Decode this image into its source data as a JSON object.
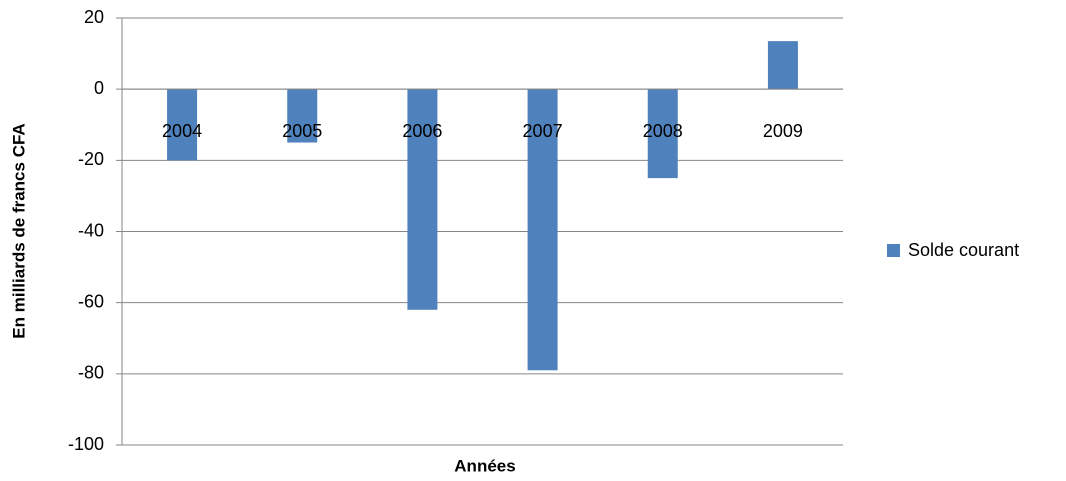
{
  "chart_data": {
    "type": "bar",
    "x_label": "Années",
    "y_label": "En milliards de francs CFA",
    "categories": [
      "2004",
      "2005",
      "2006",
      "2007",
      "2008",
      "2009"
    ],
    "series": [
      {
        "name": "Solde courant",
        "color": "#4f81bd",
        "values": [
          -20,
          -15,
          -62,
          -79,
          -25,
          13.5
        ]
      }
    ],
    "ylim": [
      -100,
      20
    ],
    "yticks": [
      -100,
      -80,
      -60,
      -40,
      -20,
      0,
      20
    ],
    "grid": true,
    "legend": "right"
  }
}
